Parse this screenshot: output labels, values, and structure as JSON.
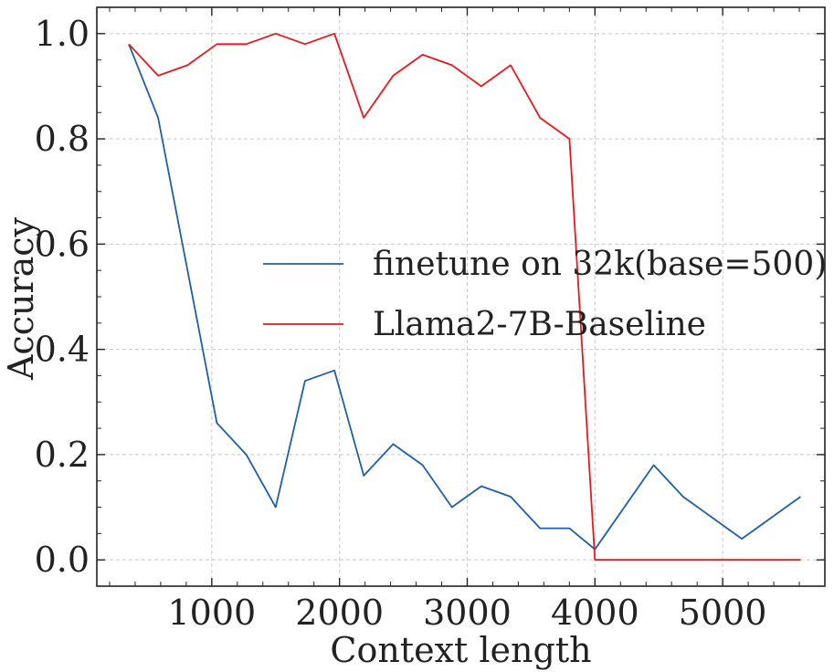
{
  "chart_data": {
    "type": "line",
    "xlabel": "Context length",
    "ylabel": "Accuracy",
    "xlim": [
      100,
      5800
    ],
    "ylim": [
      -0.05,
      1.05
    ],
    "xticks": [
      1000,
      2000,
      3000,
      4000,
      5000
    ],
    "yticks": [
      0.0,
      0.2,
      0.4,
      0.6,
      0.8,
      1.0
    ],
    "xtick_labels": [
      "1000",
      "2000",
      "3000",
      "4000",
      "5000"
    ],
    "ytick_labels": [
      "0.0",
      "0.2",
      "0.4",
      "0.6",
      "0.8",
      "1.0"
    ],
    "grid": true,
    "legend_position": "center-right",
    "series": [
      {
        "name": "finetune on 32k(base=500)",
        "color": "#1f5fa8",
        "x": [
          350,
          580,
          810,
          1040,
          1270,
          1500,
          1730,
          1960,
          2190,
          2420,
          2650,
          2880,
          3110,
          3340,
          3570,
          3800,
          4000,
          4460,
          4690,
          4920,
          5150,
          5610
        ],
        "y": [
          0.98,
          0.84,
          0.55,
          0.26,
          0.2,
          0.1,
          0.34,
          0.36,
          0.16,
          0.22,
          0.18,
          0.1,
          0.14,
          0.12,
          0.06,
          0.06,
          0.02,
          0.18,
          0.12,
          0.08,
          0.04,
          0.12
        ]
      },
      {
        "name": "Llama2-7B-Baseline",
        "color": "#e8191c",
        "x": [
          350,
          580,
          810,
          1040,
          1270,
          1500,
          1730,
          1960,
          2190,
          2420,
          2650,
          2880,
          3110,
          3340,
          3570,
          3800,
          4000,
          4460,
          4690,
          4920,
          5150,
          5610
        ],
        "y": [
          0.98,
          0.92,
          0.94,
          0.98,
          0.98,
          1.0,
          0.98,
          1.0,
          0.84,
          0.92,
          0.96,
          0.94,
          0.9,
          0.94,
          0.84,
          0.8,
          0.0,
          0.0,
          0.0,
          0.0,
          0.0,
          0.0
        ]
      }
    ]
  }
}
